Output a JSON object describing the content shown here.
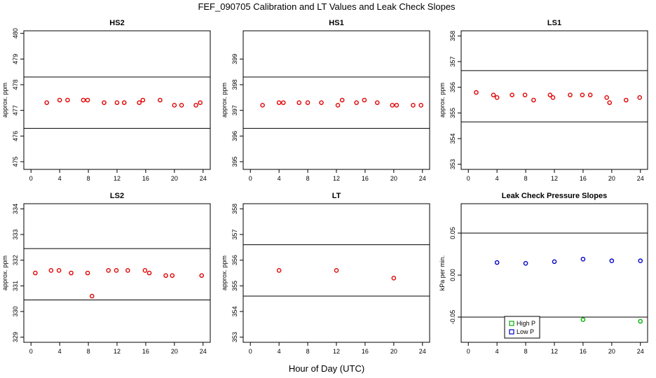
{
  "figure": {
    "title": "FEF_090705  Calibration and LT Values and Leak Check Slopes",
    "xlabel": "Hour of Day (UTC)"
  },
  "chart_data": [
    {
      "type": "scatter",
      "title": "HS2",
      "ylabel": "approx. ppm",
      "xlim": [
        -1,
        25
      ],
      "ylim": [
        474.7,
        480.1
      ],
      "xticks": [
        0,
        4,
        8,
        12,
        16,
        20,
        24
      ],
      "yticks": [
        475,
        476,
        477,
        478,
        479,
        480
      ],
      "reference_lines": [
        476.3,
        478.3
      ],
      "series": [
        {
          "color": "#e00000",
          "x": [
            2.2,
            4.0,
            5.1,
            7.3,
            7.9,
            10.2,
            12.0,
            13.0,
            15.1,
            15.6,
            18.0,
            20.0,
            21.0,
            23.0,
            23.6
          ],
          "y": [
            477.3,
            477.4,
            477.4,
            477.4,
            477.4,
            477.3,
            477.3,
            477.3,
            477.3,
            477.4,
            477.4,
            477.2,
            477.2,
            477.2,
            477.3
          ]
        }
      ]
    },
    {
      "type": "scatter",
      "title": "HS1",
      "ylabel": "approx. ppm",
      "xlim": [
        -1,
        25
      ],
      "ylim": [
        394.7,
        400.1
      ],
      "xticks": [
        0,
        4,
        8,
        12,
        16,
        20,
        24
      ],
      "yticks": [
        395,
        396,
        397,
        398,
        399
      ],
      "reference_lines": [
        396.3,
        398.3
      ],
      "series": [
        {
          "color": "#e00000",
          "x": [
            1.7,
            4.0,
            4.6,
            6.8,
            8.0,
            9.9,
            12.2,
            12.8,
            14.8,
            15.9,
            17.7,
            19.8,
            20.4,
            22.7,
            23.8
          ],
          "y": [
            397.2,
            397.3,
            397.3,
            397.3,
            397.3,
            397.3,
            397.2,
            397.4,
            397.3,
            397.4,
            397.3,
            397.2,
            397.2,
            397.2,
            397.2
          ]
        }
      ]
    },
    {
      "type": "scatter",
      "title": "LS1",
      "ylabel": "approx. ppm",
      "xlim": [
        -1,
        25
      ],
      "ylim": [
        352.8,
        358.2
      ],
      "xticks": [
        0,
        4,
        8,
        12,
        16,
        20,
        24
      ],
      "yticks": [
        353,
        354,
        355,
        356,
        357,
        358
      ],
      "reference_lines": [
        354.65,
        356.65
      ],
      "series": [
        {
          "color": "#e00000",
          "x": [
            1.1,
            3.5,
            4.0,
            6.1,
            7.9,
            9.1,
            11.4,
            11.8,
            14.2,
            15.9,
            17.0,
            19.3,
            19.7,
            22.0,
            23.9
          ],
          "y": [
            355.8,
            355.7,
            355.6,
            355.7,
            355.7,
            355.5,
            355.7,
            355.6,
            355.7,
            355.7,
            355.7,
            355.6,
            355.4,
            355.5,
            355.6
          ]
        }
      ]
    },
    {
      "type": "scatter",
      "title": "LS2",
      "ylabel": "approx. ppm",
      "xlim": [
        -1,
        25
      ],
      "ylim": [
        328.8,
        334.2
      ],
      "xticks": [
        0,
        4,
        8,
        12,
        16,
        20,
        24
      ],
      "yticks": [
        329,
        330,
        331,
        332,
        333,
        334
      ],
      "reference_lines": [
        330.45,
        332.45
      ],
      "series": [
        {
          "color": "#e00000",
          "x": [
            0.6,
            2.8,
            3.9,
            5.6,
            7.9,
            8.5,
            10.8,
            11.9,
            13.5,
            15.9,
            16.5,
            18.8,
            19.7,
            23.8
          ],
          "y": [
            331.5,
            331.6,
            331.6,
            331.5,
            331.5,
            330.6,
            331.6,
            331.6,
            331.6,
            331.6,
            331.5,
            331.4,
            331.4,
            331.4
          ]
        }
      ]
    },
    {
      "type": "scatter",
      "title": "LT",
      "ylabel": "approx. ppm",
      "xlim": [
        -1,
        25
      ],
      "ylim": [
        352.8,
        358.2
      ],
      "xticks": [
        0,
        4,
        8,
        12,
        16,
        20,
        24
      ],
      "yticks": [
        353,
        354,
        355,
        356,
        357,
        358
      ],
      "reference_lines": [
        354.6,
        356.6
      ],
      "series": [
        {
          "color": "#e00000",
          "x": [
            4.0,
            12.0,
            20.0
          ],
          "y": [
            355.6,
            355.6,
            355.3
          ]
        }
      ]
    },
    {
      "type": "scatter",
      "title": "Leak Check Pressure Slopes",
      "ylabel": "kPa per min.",
      "xlim": [
        -1,
        25
      ],
      "ylim": [
        -0.08,
        0.085
      ],
      "xticks": [
        0,
        4,
        8,
        12,
        16,
        20,
        24
      ],
      "yticks": [
        -0.05,
        0.0,
        0.05
      ],
      "ytick_labels": [
        "-0.05",
        "0.00",
        "0.05"
      ],
      "reference_lines": [
        -0.05,
        0.05
      ],
      "legend": "bottom-center",
      "series": [
        {
          "name": "High P",
          "color": "#00b000",
          "x": [
            8.0,
            16.0,
            24.0
          ],
          "y": [
            -0.057,
            -0.053,
            -0.055
          ]
        },
        {
          "name": "Low P",
          "color": "#0000c8",
          "x": [
            4.0,
            8.0,
            12.0,
            16.0,
            20.0,
            24.0
          ],
          "y": [
            0.015,
            0.014,
            0.016,
            0.019,
            0.017,
            0.017
          ]
        }
      ]
    }
  ]
}
